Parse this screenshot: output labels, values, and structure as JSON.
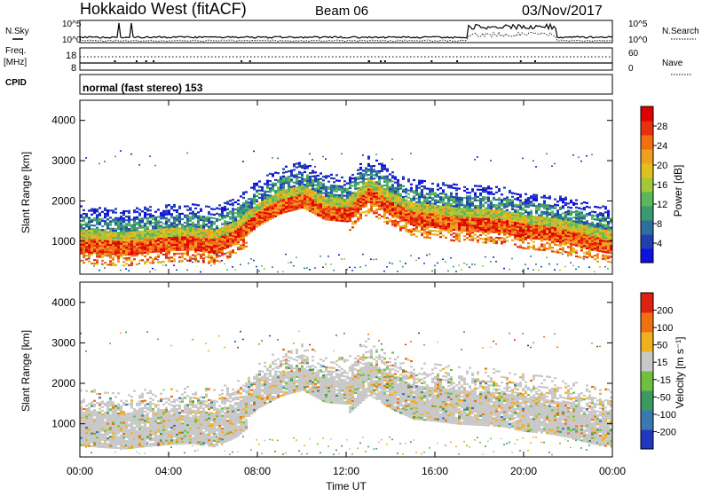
{
  "header": {
    "station": "Hokkaido West (fitACF)",
    "beam": "Beam 06",
    "date": "03/Nov/2017"
  },
  "top_panels": {
    "nsky_label": "N.Sky",
    "nsearch_label": "N.Search",
    "noise_ticks_left": [
      "10^5",
      "10^0"
    ],
    "noise_ticks_right": [
      "10^5",
      "10^0"
    ],
    "freq_label_1": "Freq.",
    "freq_label_2": "[MHz]",
    "freq_ticks": [
      "18",
      "8"
    ],
    "nave_label": "Nave",
    "nave_ticks": [
      "60",
      "0"
    ],
    "cpid_label": "CPID",
    "cpid_text": "normal (fast stereo) 153"
  },
  "chart_data": [
    {
      "type": "heatmap",
      "name": "power",
      "ylabel": "Slant Range [km]",
      "ylim": [
        180,
        4500
      ],
      "y_ticks": [
        1000,
        2000,
        3000,
        4000
      ],
      "x_ticks": [
        "00:00",
        "04:00",
        "08:00",
        "12:00",
        "16:00",
        "20:00",
        "00:00"
      ],
      "xlim_hours": [
        0,
        24
      ],
      "colorbar": {
        "label": "Power [dB]",
        "ticks": [
          "4",
          "8",
          "12",
          "16",
          "20",
          "24",
          "28"
        ],
        "colors": [
          "#1010e0",
          "#2040b0",
          "#2e6fa0",
          "#3a9a70",
          "#5ab85a",
          "#a0c838",
          "#e0c020",
          "#f0a020",
          "#f07010",
          "#e83010",
          "#e00000"
        ]
      },
      "band_center_km": [
        [
          0,
          950
        ],
        [
          1,
          900
        ],
        [
          2,
          870
        ],
        [
          3,
          930
        ],
        [
          4,
          980
        ],
        [
          5,
          1000
        ],
        [
          6,
          920
        ],
        [
          7,
          1150
        ],
        [
          8,
          1600
        ],
        [
          9,
          1900
        ],
        [
          10,
          2050
        ],
        [
          11,
          1750
        ],
        [
          12,
          1700
        ],
        [
          13,
          2200
        ],
        [
          14,
          1850
        ],
        [
          15,
          1600
        ],
        [
          16,
          1550
        ],
        [
          17,
          1480
        ],
        [
          18,
          1450
        ],
        [
          19,
          1420
        ],
        [
          20,
          1300
        ],
        [
          21,
          1250
        ],
        [
          22,
          1150
        ],
        [
          23,
          1000
        ],
        [
          24,
          900
        ]
      ]
    },
    {
      "type": "heatmap",
      "name": "velocity",
      "ylabel": "Slant Range [km]",
      "ylim": [
        180,
        4500
      ],
      "y_ticks": [
        1000,
        2000,
        3000,
        4000
      ],
      "x_ticks": [
        "00:00",
        "04:00",
        "08:00",
        "12:00",
        "16:00",
        "20:00",
        "00:00"
      ],
      "xlabel": "Time UT",
      "colorbar": {
        "label": "Velocity [m s⁻¹]",
        "ticks": [
          "200",
          "100",
          "50",
          "15",
          "-15",
          "-50",
          "-100",
          "-200"
        ],
        "colors": [
          "#2038c0",
          "#3a78b0",
          "#3a9a60",
          "#70c040",
          "#c8c8c8",
          "#f0b020",
          "#f07010",
          "#e02010"
        ]
      }
    }
  ]
}
